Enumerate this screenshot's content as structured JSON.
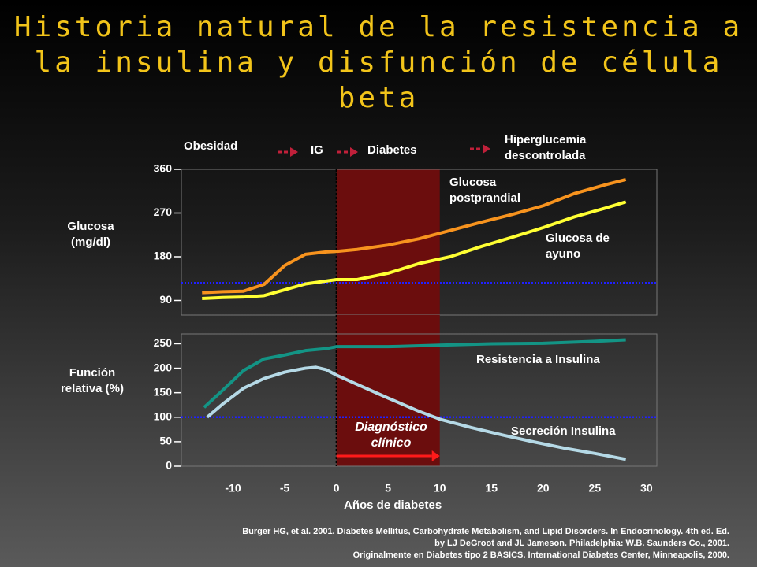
{
  "title": "Historia natural de la resistencia a la insulina y disfunción de célula beta",
  "stages": [
    "Obesidad",
    "IG",
    "Diabetes",
    "Hiperglucemia descontrolada"
  ],
  "annotation": "Diagnóstico clínico",
  "reference": [
    "Burger HG, et al. 2001. Diabetes Mellitus, Carbohydrate Metabolism, and Lipid Disorders. In Endocrinology. 4th ed. Ed.",
    "by LJ DeGroot and JL Jameson. Philadelphia: W.B. Saunders Co., 2001.",
    "Originalmente en Diabetes tipo 2 BASICS. International Diabetes Center, Minneapolis, 2000."
  ],
  "chart_data": [
    {
      "type": "line",
      "ylabel": "Glucosa (mg/dl)",
      "xlim": [
        -15,
        31
      ],
      "ylim": [
        60,
        360
      ],
      "yticks": [
        90,
        180,
        270,
        360
      ],
      "reference_line": 126,
      "highlight": [
        0,
        10
      ],
      "series": [
        {
          "name": "Glucosa postprandial",
          "color": "#f7931e",
          "x": [
            -13,
            -11,
            -9,
            -7,
            -5,
            -3,
            -1,
            0,
            2,
            5,
            8,
            11,
            14,
            17,
            20,
            23,
            26,
            28
          ],
          "values": [
            106,
            108,
            109,
            123,
            162,
            185,
            190,
            191,
            195,
            204,
            217,
            234,
            251,
            267,
            285,
            310,
            328,
            339
          ]
        },
        {
          "name": "Glucosa de ayuno",
          "color": "#ffff33",
          "x": [
            -13,
            -11,
            -9,
            -7,
            -5,
            -3,
            -1,
            0,
            2,
            5,
            8,
            11,
            14,
            17,
            20,
            23,
            26,
            28
          ],
          "values": [
            94,
            96,
            97,
            100,
            112,
            124,
            130,
            133,
            133,
            146,
            166,
            180,
            201,
            220,
            240,
            262,
            280,
            293
          ]
        }
      ]
    },
    {
      "type": "line",
      "ylabel": "Función relativa (%)",
      "xlabel": "Años de diabetes",
      "xlim": [
        -15,
        31
      ],
      "ylim": [
        0,
        270
      ],
      "yticks": [
        0,
        50,
        100,
        150,
        200,
        250
      ],
      "xticks": [
        -10,
        -5,
        0,
        5,
        10,
        15,
        20,
        25,
        30
      ],
      "reference_line": 100,
      "highlight": [
        0,
        10
      ],
      "series": [
        {
          "name": "Resistencia a Insulina",
          "color": "#139485",
          "x": [
            -12.8,
            -11,
            -9,
            -7,
            -5,
            -3,
            -1,
            0,
            5,
            10,
            15,
            20,
            25,
            28
          ],
          "values": [
            120,
            155,
            195,
            219,
            227,
            236,
            240,
            244,
            244,
            247,
            250,
            251,
            255,
            258
          ]
        },
        {
          "name": "Secreción Insulina",
          "color": "#b5d9e6",
          "x": [
            -12.5,
            -11,
            -9,
            -7,
            -5,
            -3,
            -2,
            -1,
            0,
            2,
            5,
            8,
            10,
            13,
            16,
            19,
            22,
            25,
            28
          ],
          "values": [
            100,
            127,
            159,
            179,
            192,
            200,
            202,
            197,
            186,
            167,
            139,
            112,
            96,
            79,
            64,
            50,
            37,
            26,
            14
          ]
        }
      ]
    }
  ]
}
